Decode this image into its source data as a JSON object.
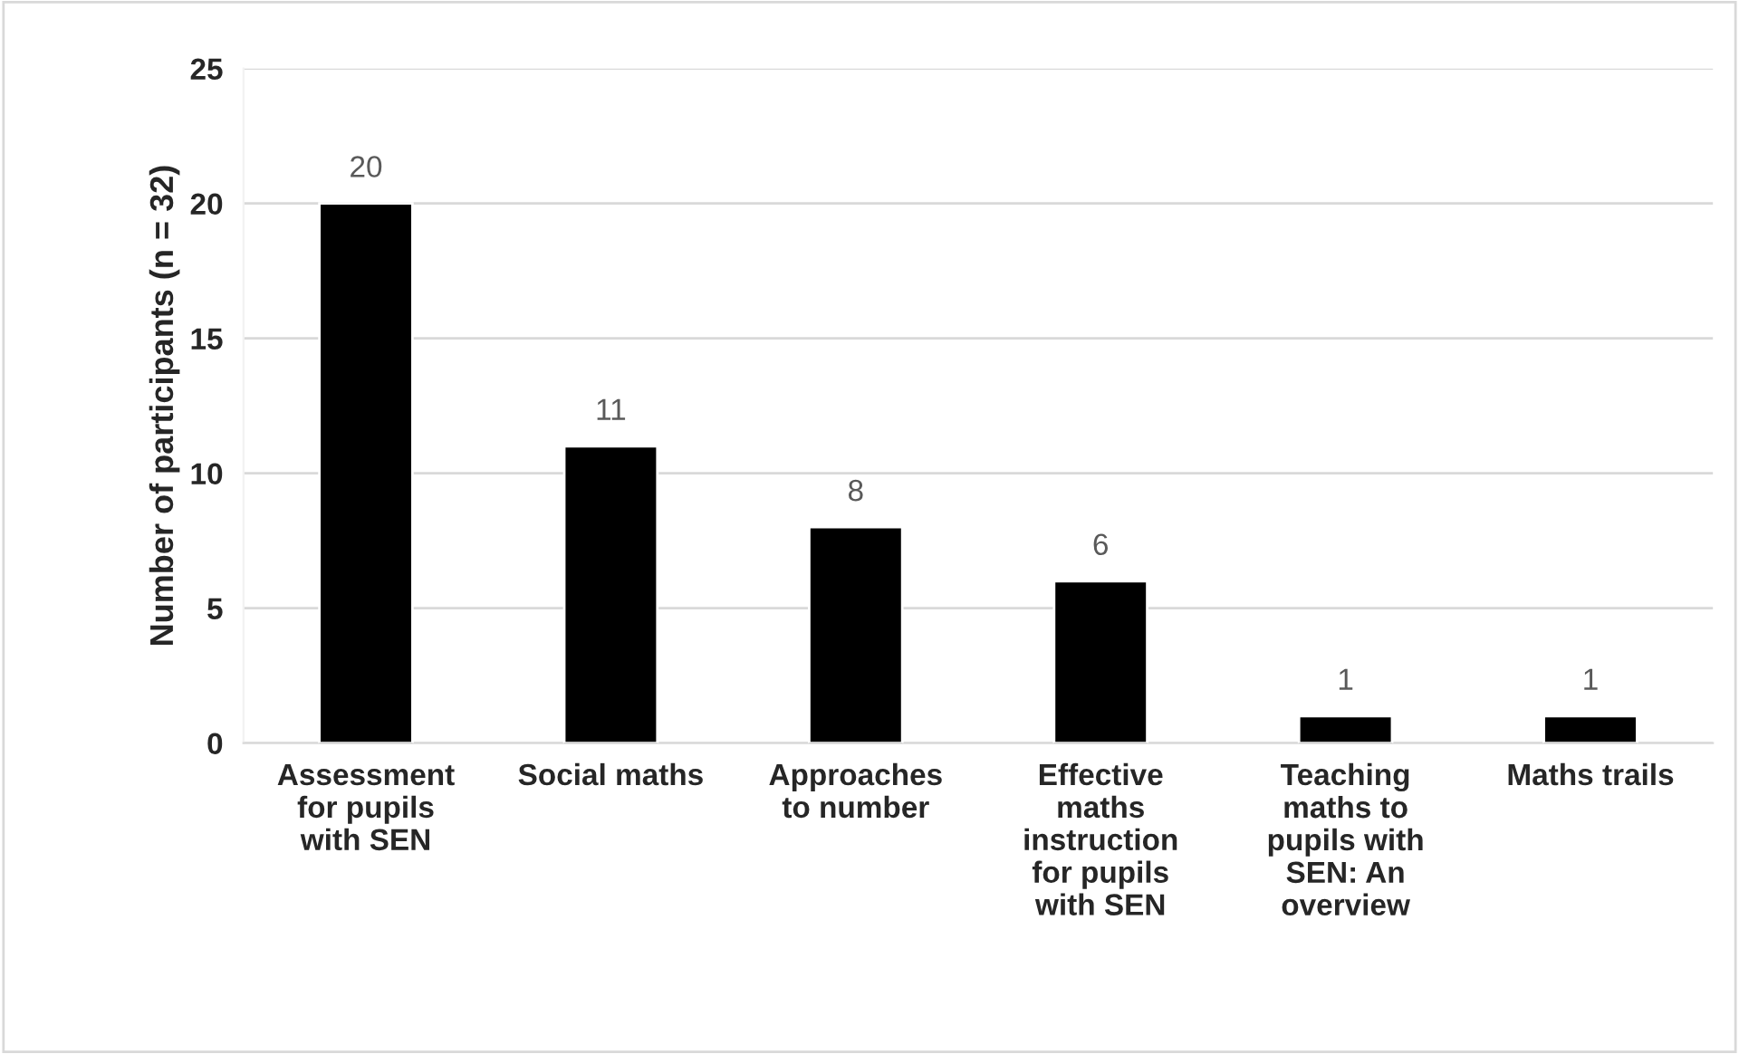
{
  "chart_data": {
    "type": "bar",
    "categories": [
      "Assessment\nfor pupils\nwith SEN",
      "Social maths",
      "Approaches\nto number",
      "Effective\nmaths\ninstruction\nfor pupils\nwith SEN",
      "Teaching\nmaths to\npupils with\nSEN: An\noverview",
      "Maths trails"
    ],
    "values": [
      20,
      11,
      8,
      6,
      1,
      1
    ],
    "color": "#000000",
    "ylabel": "Number of participants (n = 32)",
    "ylim": [
      0,
      25
    ],
    "yticks": [
      0,
      5,
      10,
      15,
      20,
      25
    ],
    "grid": "y",
    "data_labels": true
  }
}
